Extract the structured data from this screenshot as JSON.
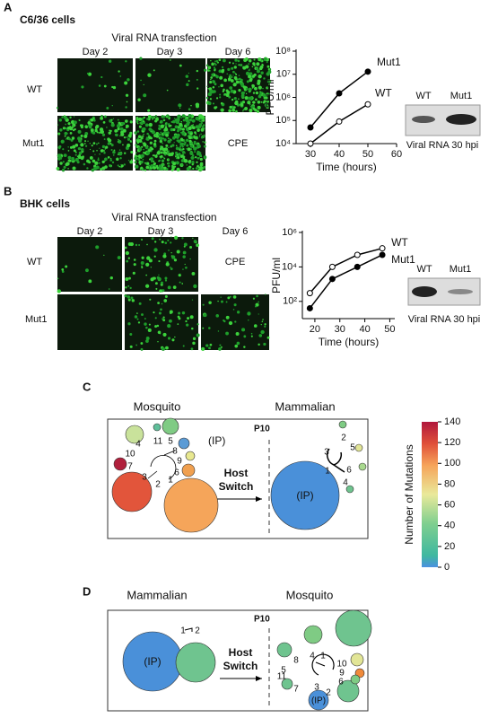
{
  "panel_a": {
    "label": "A",
    "title": "C6/36 cells",
    "subtitle": "Viral RNA transfection",
    "days": [
      "Day 2",
      "Day 3",
      "Day 6"
    ],
    "rows": [
      "WT",
      "Mut1"
    ],
    "cpe": "CPE",
    "blot_lanes": [
      "WT",
      "Mut1"
    ],
    "blot_caption": "Viral RNA 30 hpi"
  },
  "panel_b": {
    "label": "B",
    "title": "BHK cells",
    "subtitle": "Viral RNA transfection",
    "days": [
      "Day 2",
      "Day 3",
      "Day 6"
    ],
    "rows": [
      "WT",
      "Mut1"
    ],
    "cpe": "CPE",
    "blot_lanes": [
      "WT",
      "Mut1"
    ],
    "blot_caption": "Viral RNA 30 hpi"
  },
  "chart_data": [
    {
      "type": "line",
      "xlabel": "Time (hours)",
      "ylabel": "PFU/ml",
      "log_y": true,
      "x": [
        30,
        40,
        50
      ],
      "xlim": [
        25,
        60
      ],
      "xticks": [
        30,
        40,
        50,
        60
      ],
      "ylim": [
        10000,
        100000000
      ],
      "yticks": [
        {
          "value": 10000,
          "label": "10⁴"
        },
        {
          "value": 100000,
          "label": "10⁵"
        },
        {
          "value": 1000000,
          "label": "10⁶"
        },
        {
          "value": 10000000,
          "label": "10⁷"
        },
        {
          "value": 100000000,
          "label": "10⁸"
        }
      ],
      "series": [
        {
          "name": "Mut1",
          "color": "#000000",
          "marker": "filled",
          "values": [
            50000,
            1500000,
            13000000
          ]
        },
        {
          "name": "WT",
          "color": "#000000",
          "marker": "open",
          "values": [
            10000,
            90000,
            500000
          ]
        }
      ]
    },
    {
      "type": "line",
      "xlabel": "Time (hours)",
      "ylabel": "PFU/ml",
      "log_y": true,
      "x": [
        18,
        27,
        37,
        47
      ],
      "xlim": [
        15,
        52
      ],
      "xticks": [
        20,
        30,
        40,
        50
      ],
      "ylim": [
        10,
        1000000
      ],
      "yticks": [
        {
          "value": 100,
          "label": "10²"
        },
        {
          "value": 10000,
          "label": "10⁴"
        },
        {
          "value": 1000000,
          "label": "10⁶"
        }
      ],
      "series": [
        {
          "name": "WT",
          "color": "#000000",
          "marker": "open",
          "values": [
            300,
            10000,
            50000,
            120000
          ]
        },
        {
          "name": "Mut1",
          "color": "#000000",
          "marker": "filled",
          "values": [
            40,
            2000,
            10000,
            50000
          ]
        }
      ]
    }
  ],
  "panel_c": {
    "label": "C",
    "left": "Mosquito",
    "right": "Mammalian",
    "passage": "P10",
    "arrow": [
      "Host",
      "Switch"
    ],
    "ip": "(IP)",
    "left_labels": [
      "1",
      "2",
      "3",
      "4",
      "5",
      "6",
      "7",
      "8",
      "9",
      "10",
      "11"
    ],
    "right_labels": [
      "1",
      "2",
      "3",
      "4",
      "5",
      "6"
    ]
  },
  "panel_d": {
    "label": "D",
    "left": "Mammalian",
    "right": "Mosquito",
    "passage": "P10",
    "arrow": [
      "Host",
      "Switch"
    ],
    "ip": "(IP)",
    "left_labels": [
      "1",
      "2"
    ],
    "right_labels": [
      "1",
      "2",
      "3",
      "4",
      "5",
      "6",
      "7",
      "8",
      "9",
      "10",
      "11"
    ]
  },
  "colorbar": {
    "title": "Number of Mutations",
    "lim": [
      0,
      140
    ],
    "ticks": [
      0,
      20,
      40,
      60,
      80,
      100,
      120,
      140
    ]
  }
}
